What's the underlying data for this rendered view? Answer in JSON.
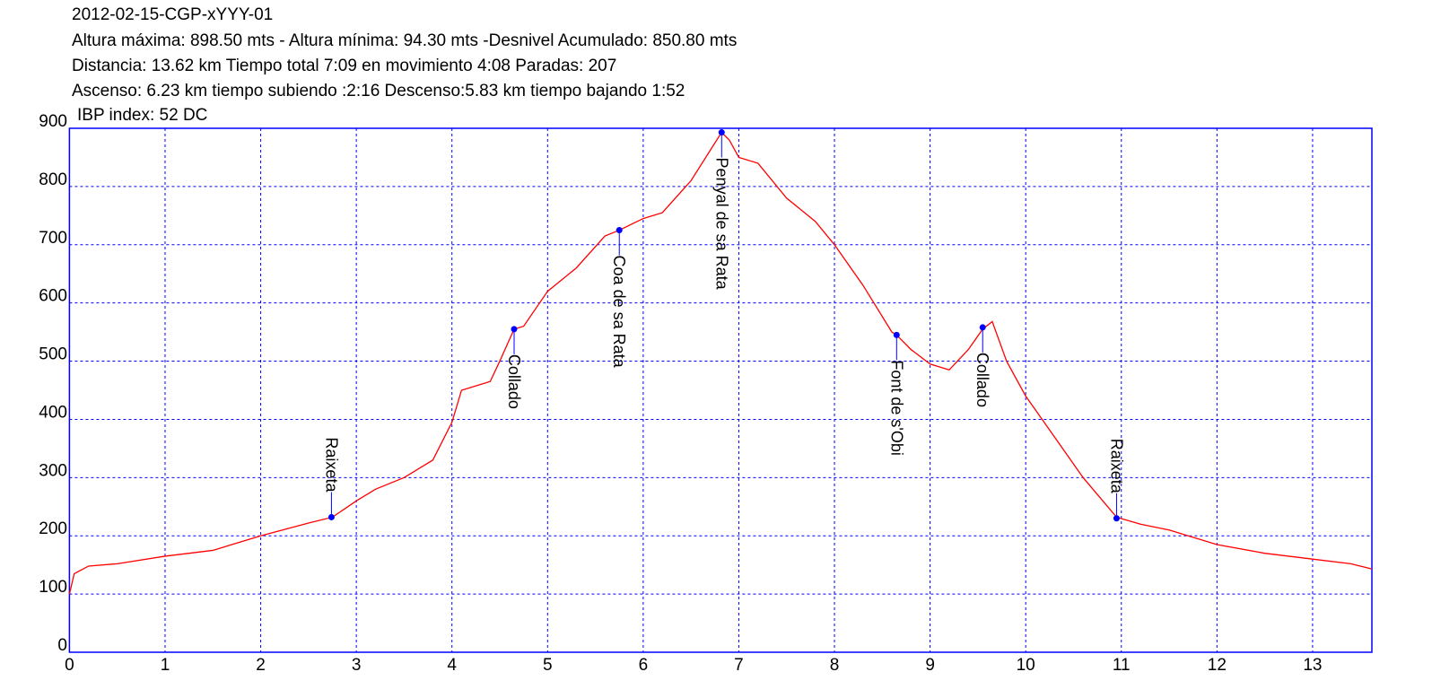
{
  "chart_data": {
    "type": "line",
    "title": "2012-02-15-CGP-xYYY-01",
    "subtitle": [
      "Altura máxima: 898.50 mts - Altura mínima: 94.30 mts -Desnivel Acumulado: 850.80 mts",
      "Distancia: 13.62 km  Tiempo total 7:09  en movimiento 4:08 Paradas: 207",
      "Ascenso: 6.23 km  tiempo subiendo :2:16  Descenso:5.83 km tiempo bajando 1:52",
      "IBP index: 52 DC"
    ],
    "x": [
      0,
      0.05,
      0.2,
      0.5,
      1.0,
      1.5,
      2.0,
      2.5,
      2.75,
      3.0,
      3.2,
      3.5,
      3.7,
      3.8,
      4.0,
      4.1,
      4.3,
      4.4,
      4.5,
      4.65,
      4.75,
      5.0,
      5.3,
      5.6,
      5.75,
      6.0,
      6.2,
      6.5,
      6.82,
      6.9,
      7.0,
      7.2,
      7.5,
      7.8,
      8.0,
      8.3,
      8.6,
      8.65,
      8.8,
      9.0,
      9.2,
      9.4,
      9.55,
      9.65,
      9.8,
      10.0,
      10.3,
      10.6,
      10.95,
      11.2,
      11.5,
      12.0,
      12.5,
      13.0,
      13.4,
      13.62
    ],
    "series": [
      {
        "color": "#ff0000",
        "values": [
          100,
          135,
          148,
          152,
          165,
          175,
          200,
          222,
          232,
          260,
          280,
          300,
          320,
          330,
          395,
          450,
          460,
          465,
          500,
          555,
          560,
          620,
          660,
          715,
          725,
          745,
          755,
          810,
          893,
          880,
          850,
          840,
          780,
          740,
          700,
          630,
          550,
          545,
          520,
          495,
          485,
          520,
          555,
          568,
          500,
          440,
          370,
          300,
          232,
          220,
          210,
          185,
          170,
          160,
          152,
          143
        ]
      }
    ],
    "markers": [
      {
        "label": "Raixeta",
        "x": 2.74,
        "y": 232
      },
      {
        "label": "Collado",
        "x": 4.65,
        "y": 555
      },
      {
        "label": "Coa de sa Rata",
        "x": 5.75,
        "y": 725
      },
      {
        "label": "Penyal de sa Rata",
        "x": 6.82,
        "y": 893
      },
      {
        "label": "Font de s'Obi",
        "x": 8.65,
        "y": 545
      },
      {
        "label": "Collado",
        "x": 9.55,
        "y": 558
      },
      {
        "label": "Raixeta",
        "x": 10.95,
        "y": 230
      }
    ],
    "marker_color": "#0000ff",
    "xlim": [
      0,
      13.62
    ],
    "xticks": [
      0,
      1,
      2,
      3,
      4,
      5,
      6,
      7,
      8,
      9,
      10,
      11,
      12,
      13
    ],
    "ylim": [
      0,
      900
    ],
    "yticks": [
      0,
      100,
      200,
      300,
      400,
      500,
      600,
      700,
      800,
      900
    ],
    "grid": true,
    "grid_color": "#0000ff"
  }
}
